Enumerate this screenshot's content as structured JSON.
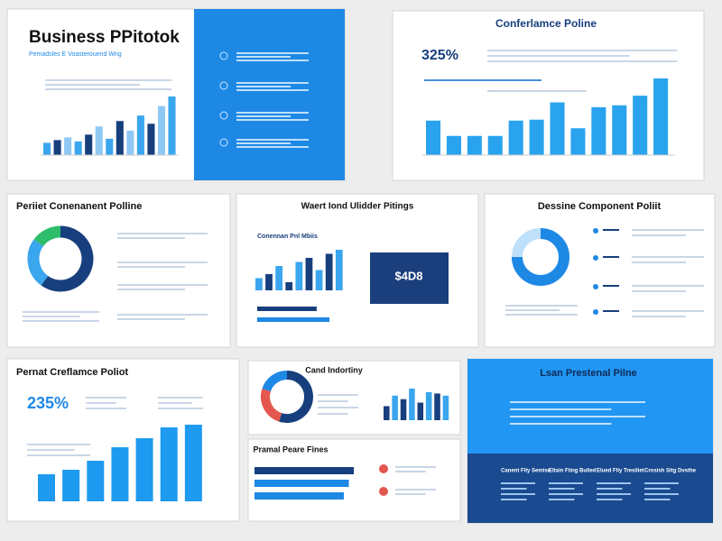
{
  "slides": [
    {
      "title": "Business PPitotok",
      "subtitle": "Pemadsles E Voasterouend Wrig",
      "bars": [
        18,
        22,
        26,
        20,
        30,
        42,
        24,
        50,
        36,
        58,
        46,
        72,
        86
      ]
    },
    {
      "title": "Conferlamce Poline",
      "stat": "325%",
      "bars": [
        36,
        20,
        20,
        20,
        36,
        37,
        55,
        28,
        50,
        52,
        62,
        80
      ]
    },
    {
      "title": "Periiet Conenanent Polline",
      "donut": [
        60,
        25,
        15
      ]
    },
    {
      "title": "Waert Iond Ulidder Pitings",
      "chart_title": "Conennan Pnl Mbiis",
      "stat": "$4D8",
      "bars": [
        15,
        20,
        30,
        10,
        35,
        40,
        25,
        45,
        50
      ],
      "hbars": [
        70,
        85
      ]
    },
    {
      "title": "Dessine Component Poliit",
      "donut": [
        75,
        25
      ]
    },
    {
      "title": "Pernat Creflamce Poliot",
      "stat": "235%",
      "bars": [
        30,
        35,
        45,
        60,
        70,
        82,
        85
      ]
    },
    {
      "title": "Cand Indortiny",
      "donut": [
        55,
        25,
        20
      ],
      "bars": [
        20,
        35,
        30,
        45,
        25,
        40,
        38,
        35
      ]
    },
    {
      "title": "Pramal Peare Fines",
      "hbars": [
        100,
        95,
        90
      ]
    },
    {
      "title": "Lsan Prestenal Pilne",
      "columns": [
        "Canent Fily Semise",
        "Eltain Fiing Bulled",
        "Elued Fliy Tresiliet",
        "Crosish Sitg Dvsthe"
      ]
    }
  ]
}
